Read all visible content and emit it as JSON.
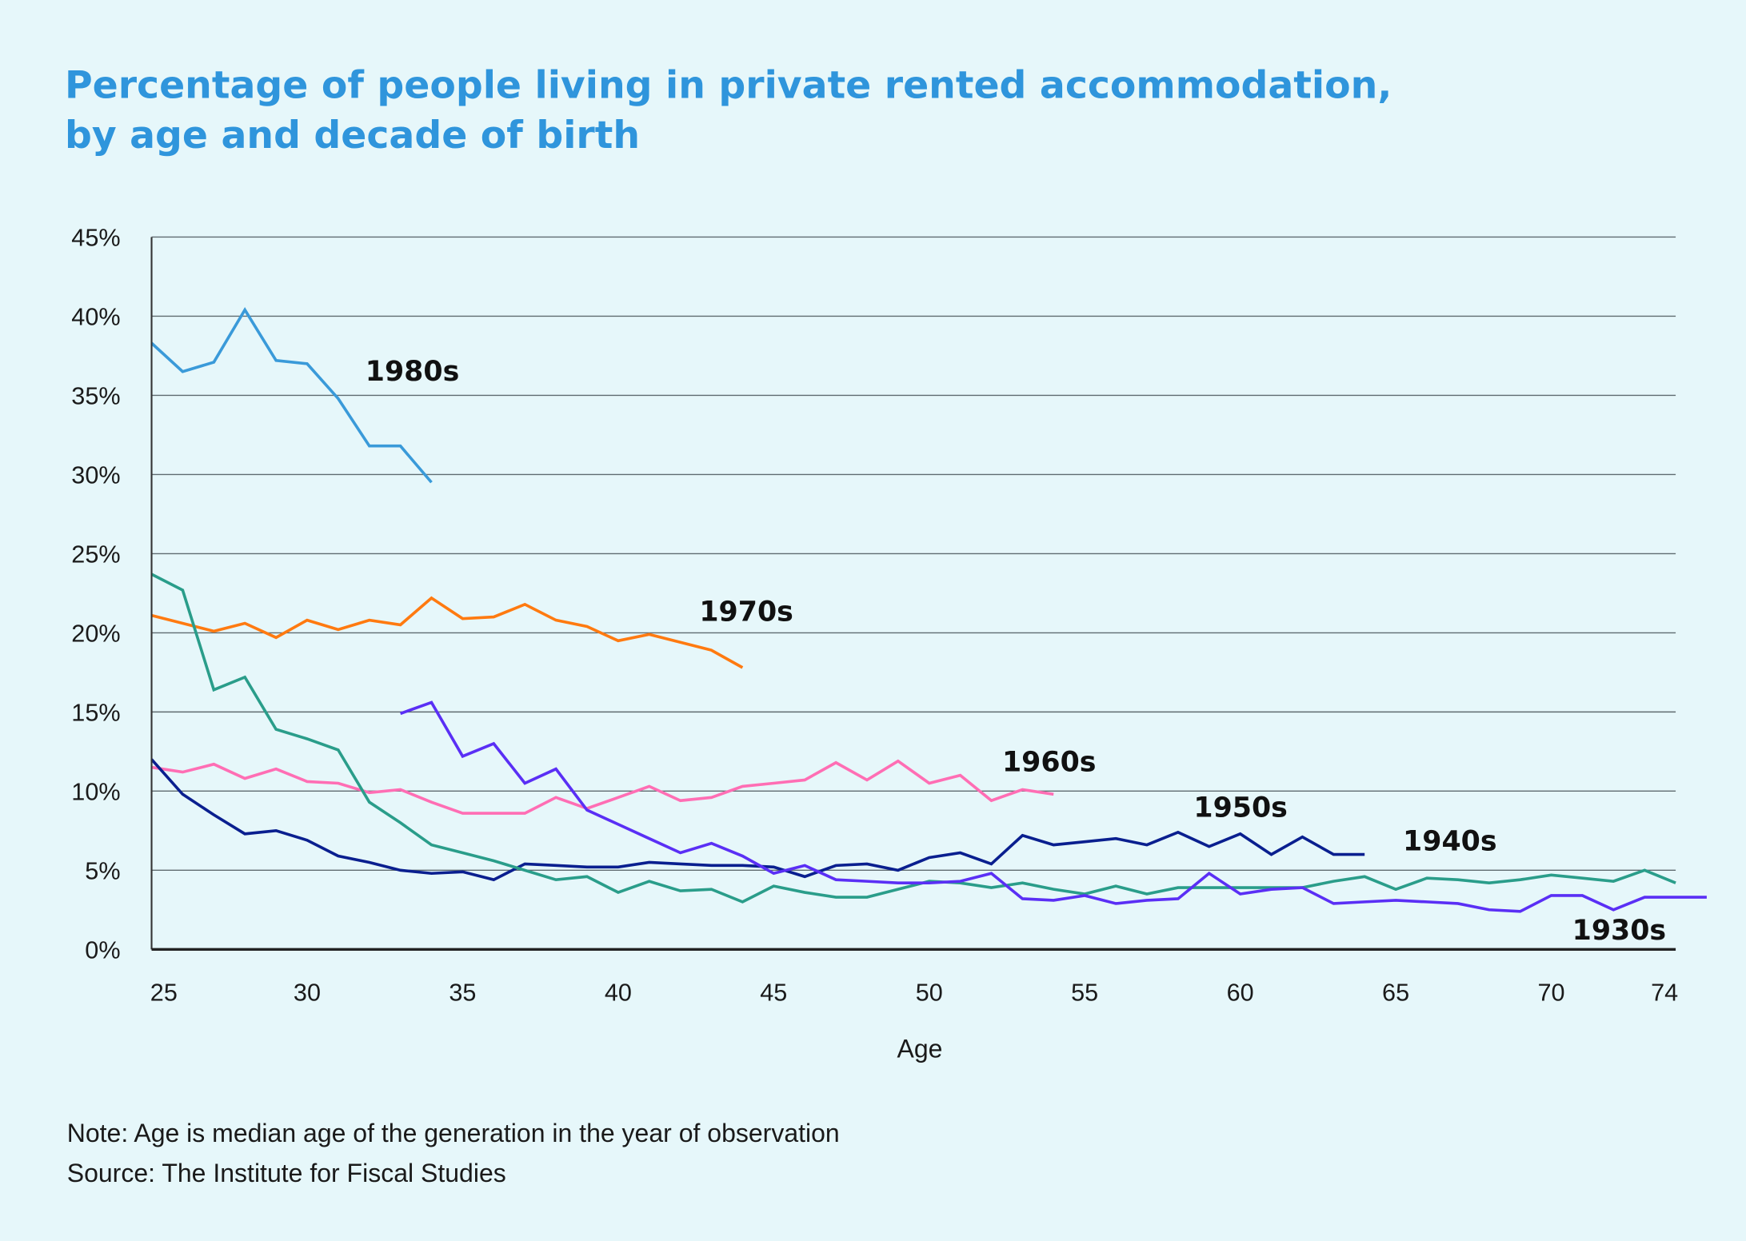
{
  "chart_data": {
    "type": "line",
    "title_lines": [
      "Percentage of people living in private rented accommodation,",
      "by age and decade of birth"
    ],
    "xlabel": "Age",
    "ylabel": "",
    "xlim": [
      25,
      74
    ],
    "ylim": [
      0,
      45
    ],
    "x_ticks": [
      25,
      30,
      35,
      40,
      45,
      50,
      55,
      60,
      65,
      70,
      74
    ],
    "y_ticks": [
      0,
      5,
      10,
      15,
      20,
      25,
      30,
      35,
      40,
      45
    ],
    "y_tick_labels": [
      "0%",
      "5%",
      "10%",
      "15%",
      "20%",
      "25%",
      "30%",
      "35%",
      "40%",
      "45%"
    ],
    "grid": "horizontal",
    "series": [
      {
        "name": "1980s",
        "color": "#3a9ad9",
        "start_age": 25,
        "values": [
          38.3,
          36.5,
          37.1,
          40.4,
          37.2,
          37.0,
          34.8,
          31.8,
          31.8,
          29.5
        ]
      },
      {
        "name": "1970s",
        "color": "#ff7a10",
        "start_age": 25,
        "values": [
          21.1,
          20.6,
          20.1,
          20.6,
          19.7,
          20.8,
          20.2,
          20.8,
          20.5,
          22.2,
          20.9,
          21.0,
          21.8,
          20.8,
          20.4,
          19.5,
          19.9,
          19.4,
          18.9,
          17.8
        ]
      },
      {
        "name": "1960s",
        "color": "#ff6eb4",
        "start_age": 25,
        "values": [
          11.5,
          11.2,
          11.7,
          10.8,
          11.4,
          10.6,
          10.5,
          9.9,
          10.1,
          9.3,
          8.6,
          8.6,
          8.6,
          9.6,
          8.9,
          9.6,
          10.3,
          9.4,
          9.6,
          10.3,
          10.5,
          10.7,
          11.8,
          10.7,
          11.9,
          10.5,
          11.0,
          9.4,
          10.1,
          9.8
        ]
      },
      {
        "name": "1950s",
        "color": "#0a1f8f",
        "start_age": 25,
        "values": [
          12.0,
          9.8,
          8.5,
          7.3,
          7.5,
          6.9,
          5.9,
          5.5,
          5.0,
          4.8,
          4.9,
          4.4,
          5.4,
          5.3,
          5.2,
          5.2,
          5.5,
          5.4,
          5.3,
          5.3,
          5.2,
          4.6,
          5.3,
          5.4,
          5.0,
          5.8,
          6.1,
          5.4,
          7.2,
          6.6,
          6.8,
          7.0,
          6.6,
          7.4,
          6.5,
          7.3,
          6.0,
          7.1,
          6.0,
          6.0
        ]
      },
      {
        "name": "1940s",
        "color": "#2a9d8a",
        "start_age": 25,
        "values": [
          23.7,
          22.7,
          16.4,
          17.2,
          13.9,
          13.3,
          12.6,
          9.3,
          8.0,
          6.6,
          6.1,
          5.6,
          5.0,
          4.4,
          4.6,
          3.6,
          4.3,
          3.7,
          3.8,
          3.0,
          4.0,
          3.6,
          3.3,
          3.3,
          3.8,
          4.3,
          4.2,
          3.9,
          4.2,
          3.8,
          3.5,
          4.0,
          3.5,
          3.9,
          3.9,
          3.9,
          3.9,
          3.9,
          4.3,
          4.6,
          3.8,
          4.5,
          4.4,
          4.2,
          4.4,
          4.7,
          4.5,
          4.3,
          5.0,
          4.2
        ]
      },
      {
        "name": "1930s",
        "color": "#5a2ff5",
        "start_age": 33,
        "values": [
          14.9,
          15.6,
          12.2,
          13.0,
          10.5,
          11.4,
          8.8,
          7.9,
          7.0,
          6.1,
          6.7,
          5.9,
          4.8,
          5.3,
          4.4,
          4.3,
          4.2,
          4.2,
          4.3,
          4.8,
          3.2,
          3.1,
          3.4,
          2.9,
          3.1,
          3.2,
          4.8,
          3.5,
          3.8,
          3.9,
          2.9,
          3.0,
          3.1,
          3.0,
          2.9,
          2.5,
          2.4,
          3.4,
          3.4,
          2.5,
          3.3,
          3.3,
          3.3
        ]
      }
    ],
    "annotations": [
      "1980s",
      "1970s",
      "1960s",
      "1950s",
      "1940s",
      "1930s"
    ]
  },
  "footer": {
    "note": "Note: Age is median age of the generation in the year of observation",
    "source": "Source: The Institute for Fiscal Studies"
  },
  "colors": {
    "background": "#e6f7fa",
    "title": "#2f95dc"
  }
}
